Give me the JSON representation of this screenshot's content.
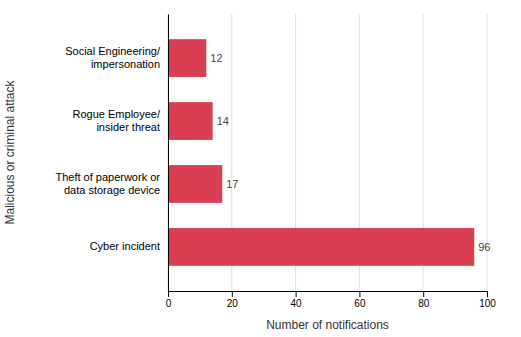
{
  "chart_data": {
    "type": "bar",
    "orientation": "horizontal",
    "categories": [
      "Cyber incident",
      "Theft of paperwork or\ndata storage device",
      "Rogue Employee/\ninsider threat",
      "Social Engineering/\nimpersonation"
    ],
    "values": [
      96,
      17,
      14,
      12
    ],
    "color": "#d93e52",
    "xlabel": "Number of notifications",
    "ylabel": "Malicious or criminal attack",
    "xlim": [
      0,
      100
    ],
    "xticks": [
      0,
      20,
      40,
      60,
      80,
      100
    ],
    "grid": true,
    "data_labels": true
  }
}
